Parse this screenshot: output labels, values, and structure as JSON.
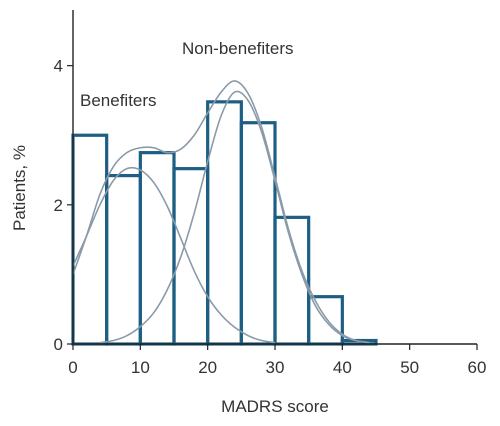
{
  "chart_data": {
    "type": "bar",
    "xlabel": "MADRS score",
    "ylabel": "Patients, %",
    "xlim": [
      0,
      60
    ],
    "ylim": [
      0,
      4.8
    ],
    "xticks": [
      0,
      10,
      20,
      30,
      40,
      50,
      60
    ],
    "yticks": [
      0,
      2,
      4
    ],
    "grid": false,
    "bins": [
      {
        "start": 0,
        "end": 5,
        "value": 3.0
      },
      {
        "start": 5,
        "end": 10,
        "value": 2.42
      },
      {
        "start": 10,
        "end": 15,
        "value": 2.75
      },
      {
        "start": 15,
        "end": 20,
        "value": 2.52
      },
      {
        "start": 20,
        "end": 25,
        "value": 3.48
      },
      {
        "start": 25,
        "end": 30,
        "value": 3.18
      },
      {
        "start": 30,
        "end": 35,
        "value": 1.82
      },
      {
        "start": 35,
        "end": 40,
        "value": 0.68
      },
      {
        "start": 40,
        "end": 45,
        "value": 0.05
      }
    ],
    "curves": [
      {
        "name": "Benefiters",
        "label_anchor_x": 1,
        "label_anchor_y": 3.0,
        "x": [
          0,
          2,
          4,
          6,
          8,
          10,
          12,
          14,
          16,
          18,
          20,
          22,
          24,
          26,
          28,
          30
        ],
        "y": [
          1.12,
          1.55,
          2.0,
          2.35,
          2.52,
          2.5,
          2.32,
          1.98,
          1.52,
          1.05,
          0.68,
          0.42,
          0.24,
          0.12,
          0.05,
          0.02
        ]
      },
      {
        "name": "Non-benefiters",
        "label_anchor_x": 16,
        "label_anchor_y": 4.05,
        "x": [
          4,
          6,
          8,
          10,
          12,
          14,
          16,
          18,
          20,
          22,
          24,
          26,
          28,
          30,
          32,
          34,
          36,
          38,
          40,
          42,
          44
        ],
        "y": [
          0.02,
          0.05,
          0.12,
          0.25,
          0.45,
          0.78,
          1.25,
          1.88,
          2.62,
          3.28,
          3.62,
          3.5,
          3.05,
          2.35,
          1.6,
          1.0,
          0.55,
          0.28,
          0.12,
          0.05,
          0.02
        ]
      },
      {
        "name": "",
        "x": [
          0,
          2,
          4,
          6,
          8,
          10,
          12,
          14,
          16,
          18,
          20,
          22,
          24,
          26,
          28,
          30,
          32,
          34,
          36,
          38,
          40,
          42,
          44
        ],
        "y": [
          1.0,
          1.55,
          2.15,
          2.55,
          2.75,
          2.82,
          2.82,
          2.75,
          2.8,
          3.0,
          3.32,
          3.62,
          3.78,
          3.6,
          3.12,
          2.4,
          1.65,
          1.05,
          0.62,
          0.32,
          0.14,
          0.05,
          0.02
        ]
      }
    ]
  },
  "colors": {
    "bar_outline": "#1d5f84",
    "curve": "#8a9aa8",
    "axis": "#222222",
    "text": "#333333"
  }
}
